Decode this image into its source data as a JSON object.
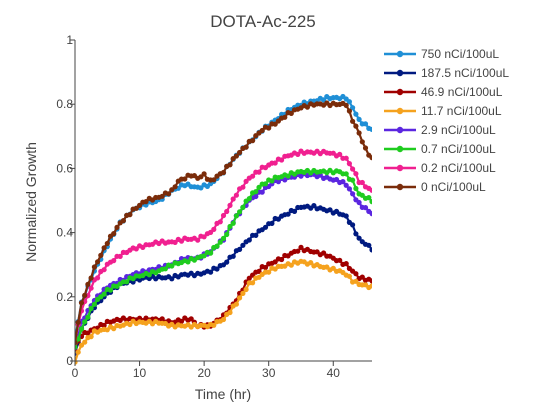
{
  "chart_data": {
    "type": "line",
    "title": "DOTA-Ac-225",
    "xlabel": "Time (hr)",
    "ylabel": "Normalized Growth",
    "xlim": [
      0,
      46
    ],
    "ylim": [
      0,
      1
    ],
    "x_ticks": [
      0,
      10,
      20,
      30,
      40
    ],
    "y_ticks": [
      0,
      0.2,
      0.4,
      0.6,
      0.8,
      1
    ],
    "x_tick_labels": [
      "0",
      "10",
      "20",
      "30",
      "40"
    ],
    "y_tick_labels": [
      "0",
      "0.2",
      "0.4",
      "0.6",
      "0.8",
      "1"
    ],
    "grid": false,
    "legend_position": "top-right",
    "series": [
      {
        "name": "750  nCi/100uL",
        "color": "#1f8fd6",
        "points": [
          [
            0,
            0.07
          ],
          [
            1,
            0.18
          ],
          [
            3,
            0.28
          ],
          [
            5,
            0.36
          ],
          [
            7,
            0.43
          ],
          [
            9,
            0.47
          ],
          [
            11,
            0.49
          ],
          [
            13,
            0.5
          ],
          [
            15,
            0.53
          ],
          [
            17,
            0.55
          ],
          [
            19,
            0.54
          ],
          [
            21,
            0.55
          ],
          [
            23,
            0.59
          ],
          [
            25,
            0.64
          ],
          [
            27,
            0.68
          ],
          [
            29,
            0.72
          ],
          [
            31,
            0.75
          ],
          [
            33,
            0.78
          ],
          [
            35,
            0.8
          ],
          [
            37,
            0.81
          ],
          [
            39,
            0.82
          ],
          [
            41,
            0.82
          ],
          [
            42,
            0.82
          ],
          [
            43,
            0.79
          ],
          [
            44,
            0.75
          ],
          [
            46,
            0.72
          ]
        ]
      },
      {
        "name": "187.5  nCi/100uL",
        "color": "#001a80",
        "points": [
          [
            0,
            0.02
          ],
          [
            1,
            0.1
          ],
          [
            3,
            0.17
          ],
          [
            5,
            0.21
          ],
          [
            7,
            0.24
          ],
          [
            9,
            0.25
          ],
          [
            11,
            0.26
          ],
          [
            13,
            0.26
          ],
          [
            15,
            0.26
          ],
          [
            17,
            0.27
          ],
          [
            19,
            0.27
          ],
          [
            21,
            0.28
          ],
          [
            23,
            0.3
          ],
          [
            25,
            0.34
          ],
          [
            27,
            0.38
          ],
          [
            29,
            0.41
          ],
          [
            31,
            0.44
          ],
          [
            33,
            0.46
          ],
          [
            35,
            0.48
          ],
          [
            37,
            0.48
          ],
          [
            39,
            0.47
          ],
          [
            41,
            0.46
          ],
          [
            42,
            0.45
          ],
          [
            43,
            0.42
          ],
          [
            44,
            0.38
          ],
          [
            46,
            0.35
          ]
        ]
      },
      {
        "name": "46.9  nCi/100uL",
        "color": "#a00000",
        "points": [
          [
            0,
            0.04
          ],
          [
            1,
            0.08
          ],
          [
            3,
            0.1
          ],
          [
            5,
            0.12
          ],
          [
            7,
            0.13
          ],
          [
            9,
            0.13
          ],
          [
            11,
            0.13
          ],
          [
            13,
            0.13
          ],
          [
            15,
            0.12
          ],
          [
            17,
            0.13
          ],
          [
            18,
            0.13
          ],
          [
            19,
            0.11
          ],
          [
            21,
            0.11
          ],
          [
            23,
            0.14
          ],
          [
            25,
            0.19
          ],
          [
            27,
            0.26
          ],
          [
            29,
            0.29
          ],
          [
            31,
            0.31
          ],
          [
            33,
            0.33
          ],
          [
            35,
            0.35
          ],
          [
            37,
            0.34
          ],
          [
            39,
            0.33
          ],
          [
            41,
            0.31
          ],
          [
            42,
            0.3
          ],
          [
            43,
            0.28
          ],
          [
            44,
            0.26
          ],
          [
            46,
            0.25
          ]
        ]
      },
      {
        "name": "11.7  nCi/100uL",
        "color": "#f5a21e",
        "points": [
          [
            0,
            0.0
          ],
          [
            1,
            0.05
          ],
          [
            3,
            0.09
          ],
          [
            5,
            0.1
          ],
          [
            7,
            0.11
          ],
          [
            9,
            0.12
          ],
          [
            11,
            0.12
          ],
          [
            13,
            0.12
          ],
          [
            15,
            0.11
          ],
          [
            17,
            0.11
          ],
          [
            19,
            0.11
          ],
          [
            21,
            0.11
          ],
          [
            23,
            0.13
          ],
          [
            25,
            0.18
          ],
          [
            27,
            0.24
          ],
          [
            29,
            0.27
          ],
          [
            31,
            0.29
          ],
          [
            33,
            0.3
          ],
          [
            35,
            0.31
          ],
          [
            37,
            0.3
          ],
          [
            39,
            0.29
          ],
          [
            41,
            0.28
          ],
          [
            42,
            0.27
          ],
          [
            43,
            0.25
          ],
          [
            44,
            0.24
          ],
          [
            46,
            0.23
          ]
        ]
      },
      {
        "name": "2.9  nCi/100uL",
        "color": "#5b26e0",
        "points": [
          [
            0,
            0.04
          ],
          [
            1,
            0.12
          ],
          [
            3,
            0.19
          ],
          [
            5,
            0.23
          ],
          [
            7,
            0.25
          ],
          [
            9,
            0.27
          ],
          [
            11,
            0.28
          ],
          [
            13,
            0.29
          ],
          [
            15,
            0.3
          ],
          [
            17,
            0.32
          ],
          [
            19,
            0.32
          ],
          [
            21,
            0.34
          ],
          [
            23,
            0.38
          ],
          [
            25,
            0.45
          ],
          [
            27,
            0.5
          ],
          [
            29,
            0.53
          ],
          [
            31,
            0.56
          ],
          [
            33,
            0.57
          ],
          [
            35,
            0.58
          ],
          [
            37,
            0.58
          ],
          [
            39,
            0.57
          ],
          [
            41,
            0.56
          ],
          [
            42,
            0.55
          ],
          [
            43,
            0.52
          ],
          [
            44,
            0.49
          ],
          [
            46,
            0.46
          ]
        ]
      },
      {
        "name": "0.7  nCi/100uL",
        "color": "#1fcc1f",
        "points": [
          [
            0,
            0.04
          ],
          [
            1,
            0.1
          ],
          [
            3,
            0.18
          ],
          [
            5,
            0.22
          ],
          [
            7,
            0.24
          ],
          [
            9,
            0.26
          ],
          [
            11,
            0.27
          ],
          [
            13,
            0.28
          ],
          [
            15,
            0.3
          ],
          [
            17,
            0.31
          ],
          [
            19,
            0.32
          ],
          [
            21,
            0.34
          ],
          [
            23,
            0.38
          ],
          [
            25,
            0.45
          ],
          [
            27,
            0.51
          ],
          [
            29,
            0.55
          ],
          [
            31,
            0.57
          ],
          [
            33,
            0.58
          ],
          [
            35,
            0.59
          ],
          [
            37,
            0.59
          ],
          [
            39,
            0.59
          ],
          [
            41,
            0.59
          ],
          [
            42,
            0.58
          ],
          [
            43,
            0.56
          ],
          [
            44,
            0.52
          ],
          [
            46,
            0.5
          ]
        ]
      },
      {
        "name": "0.2  nCi/100uL",
        "color": "#f02090",
        "points": [
          [
            0,
            0.06
          ],
          [
            1,
            0.16
          ],
          [
            3,
            0.25
          ],
          [
            5,
            0.3
          ],
          [
            7,
            0.33
          ],
          [
            9,
            0.35
          ],
          [
            11,
            0.36
          ],
          [
            13,
            0.37
          ],
          [
            15,
            0.37
          ],
          [
            17,
            0.38
          ],
          [
            19,
            0.38
          ],
          [
            21,
            0.4
          ],
          [
            23,
            0.45
          ],
          [
            25,
            0.52
          ],
          [
            27,
            0.57
          ],
          [
            29,
            0.6
          ],
          [
            31,
            0.62
          ],
          [
            33,
            0.64
          ],
          [
            35,
            0.65
          ],
          [
            37,
            0.65
          ],
          [
            39,
            0.65
          ],
          [
            41,
            0.64
          ],
          [
            42,
            0.63
          ],
          [
            43,
            0.6
          ],
          [
            44,
            0.56
          ],
          [
            46,
            0.53
          ]
        ]
      },
      {
        "name": "0  nCi/100uL",
        "color": "#7a2c0a",
        "points": [
          [
            0,
            0.06
          ],
          [
            1,
            0.18
          ],
          [
            3,
            0.29
          ],
          [
            5,
            0.37
          ],
          [
            7,
            0.43
          ],
          [
            9,
            0.47
          ],
          [
            11,
            0.5
          ],
          [
            13,
            0.51
          ],
          [
            15,
            0.53
          ],
          [
            16,
            0.56
          ],
          [
            17,
            0.57
          ],
          [
            18,
            0.58
          ],
          [
            19,
            0.57
          ],
          [
            20,
            0.58
          ],
          [
            21,
            0.56
          ],
          [
            23,
            0.59
          ],
          [
            25,
            0.64
          ],
          [
            27,
            0.68
          ],
          [
            29,
            0.72
          ],
          [
            31,
            0.74
          ],
          [
            33,
            0.77
          ],
          [
            35,
            0.79
          ],
          [
            37,
            0.8
          ],
          [
            39,
            0.8
          ],
          [
            41,
            0.8
          ],
          [
            42,
            0.8
          ],
          [
            43,
            0.75
          ],
          [
            44,
            0.71
          ],
          [
            45,
            0.66
          ],
          [
            46,
            0.63
          ]
        ]
      }
    ]
  }
}
